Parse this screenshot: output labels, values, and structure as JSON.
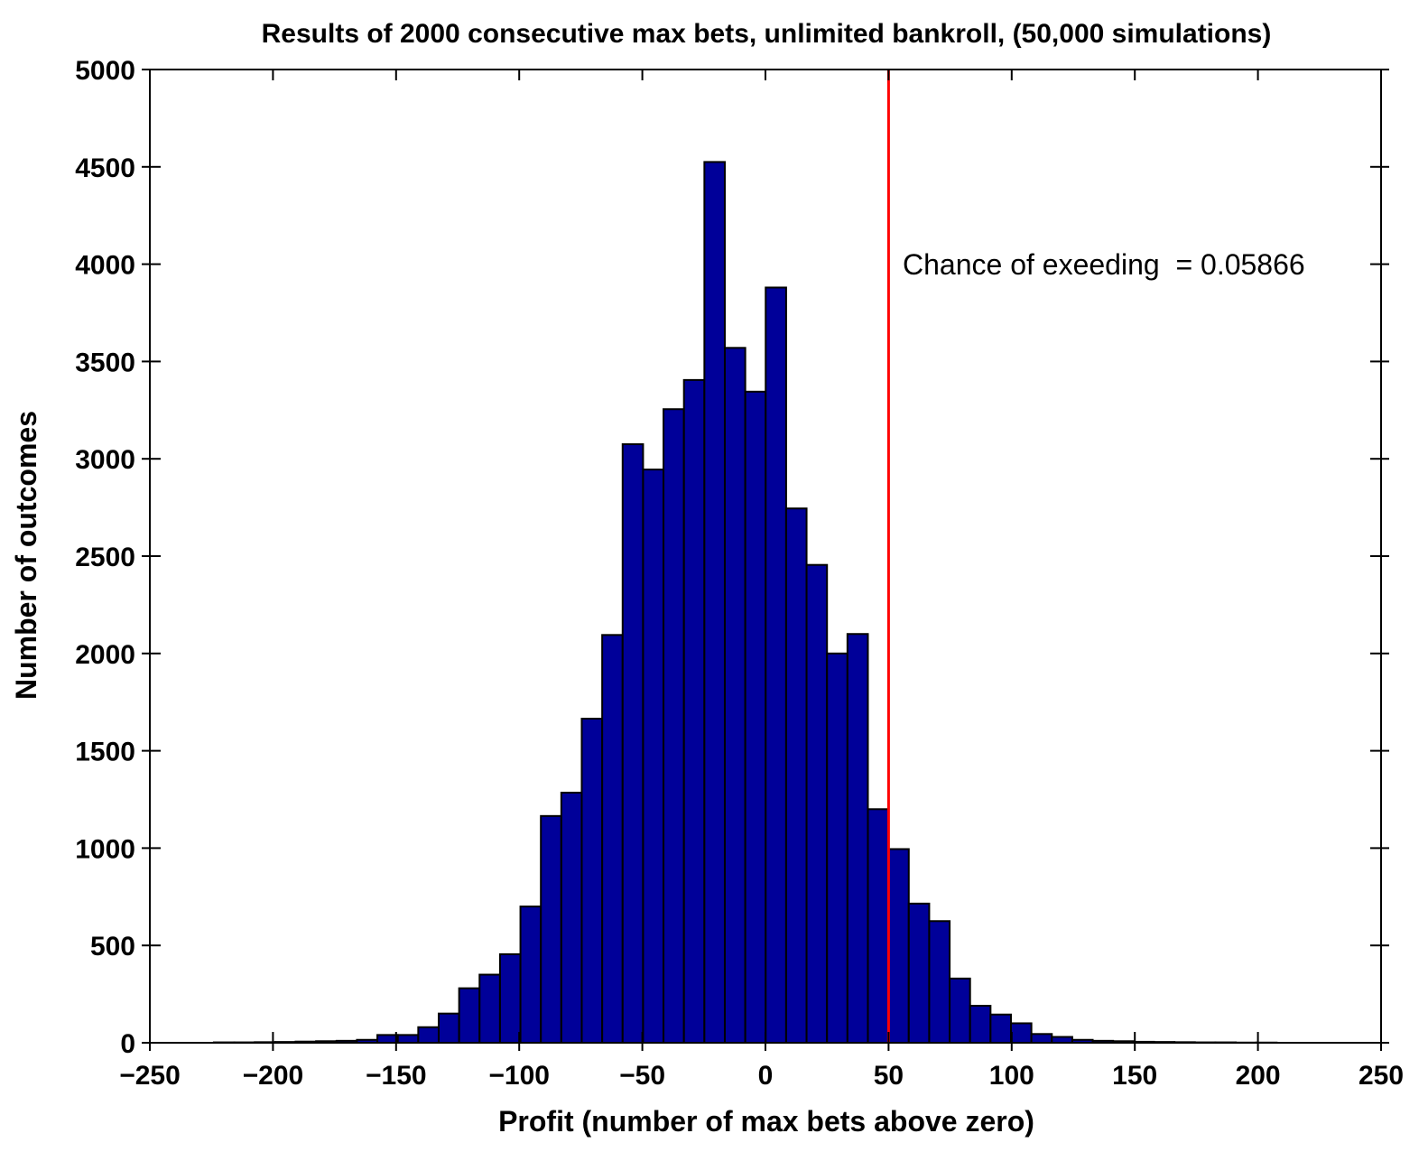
{
  "chart_data": {
    "type": "bar",
    "title": "Results of 2000 consecutive max bets, unlimited bankroll, (50,000 simulations)",
    "xlabel": "Profit (number of max bets above zero)",
    "ylabel": "Number of outcomes",
    "xlim": [
      -250,
      250
    ],
    "ylim": [
      0,
      5000
    ],
    "xticks": [
      -250,
      -200,
      -150,
      -100,
      -50,
      0,
      50,
      100,
      150,
      200,
      250
    ],
    "xtick_labels": [
      "−250",
      "−200",
      "−150",
      "−100",
      "−50",
      "0",
      "50",
      "100",
      "150",
      "200",
      "250"
    ],
    "yticks": [
      0,
      500,
      1000,
      1500,
      2000,
      2500,
      3000,
      3500,
      4000,
      4500,
      5000
    ],
    "ytick_labels": [
      "0",
      "500",
      "1000",
      "1500",
      "2000",
      "2500",
      "3000",
      "3500",
      "4000",
      "4500",
      "5000"
    ],
    "grid": false,
    "bin_width": 8.3,
    "bin_edges_start": [
      -224,
      -215.7,
      -207.4,
      -199.1,
      -190.8,
      -182.5,
      -174.2,
      -165.9,
      -157.6,
      -149.3,
      -141,
      -132.7,
      -124.4,
      -116.1,
      -107.8,
      -99.5,
      -91.2,
      -82.9,
      -74.6,
      -66.3,
      -58,
      -49.7,
      -41.4,
      -33.1,
      -24.8,
      -16.5,
      -8.2,
      0.1,
      8.4,
      16.7,
      25,
      33.3,
      41.6,
      49.9,
      58.2,
      66.5,
      74.8,
      83.1,
      91.4,
      99.7,
      108,
      116.3,
      124.6,
      132.9,
      141.2,
      149.5,
      157.8,
      166.1,
      174.4,
      182.7,
      191,
      199.3
    ],
    "values": [
      2,
      2,
      3,
      4,
      6,
      8,
      10,
      15,
      40,
      40,
      80,
      150,
      280,
      350,
      455,
      700,
      1165,
      1285,
      1665,
      2095,
      3075,
      2945,
      3255,
      3405,
      4525,
      3570,
      3345,
      3880,
      2745,
      2455,
      2000,
      2100,
      1200,
      995,
      715,
      625,
      330,
      190,
      145,
      100,
      45,
      30,
      15,
      10,
      8,
      5,
      4,
      3,
      2,
      2,
      1,
      1
    ],
    "bar_color": "#000099",
    "threshold_line": {
      "x": 50,
      "color": "#ff0000"
    },
    "annotation": "Chance of exeeding  = 0.05866"
  }
}
